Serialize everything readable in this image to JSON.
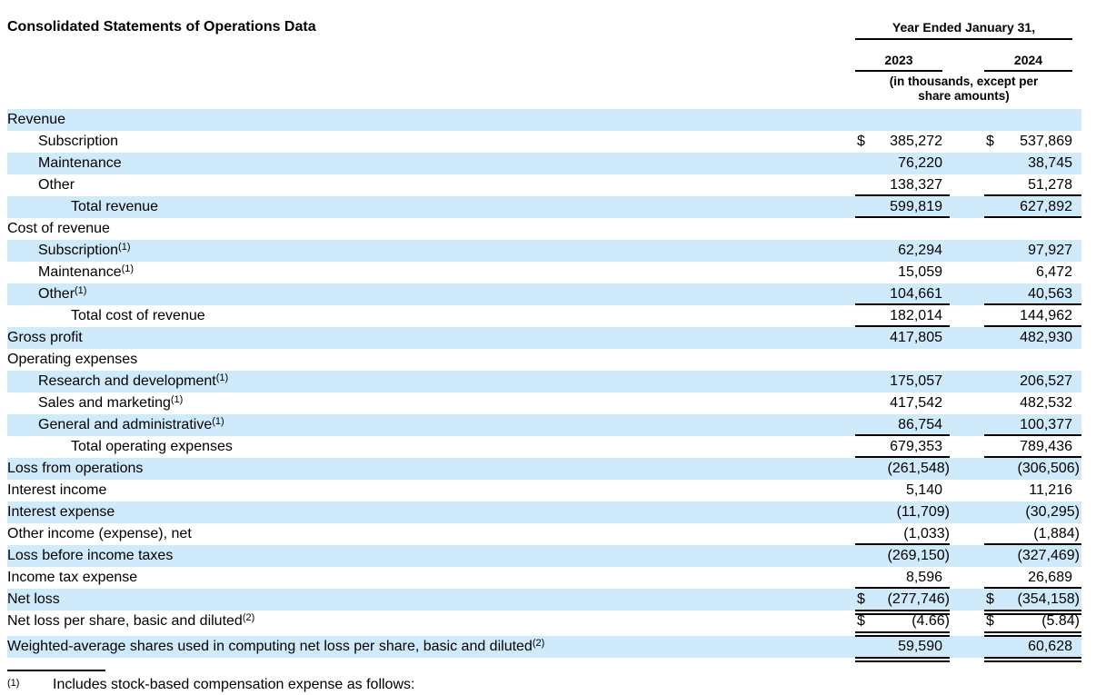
{
  "title": "Consolidated Statements of Operations Data",
  "header": {
    "period_label": "Year Ended January 31,",
    "years": [
      "2023",
      "2024"
    ],
    "units_note_line1": "(in thousands, except per",
    "units_note_line2": "share amounts)"
  },
  "colors": {
    "row_highlight": "#cfeafb",
    "text": "#000000",
    "rule": "#000000"
  },
  "table": {
    "columns": [
      "2023",
      "2024"
    ],
    "rows": [
      {
        "label": "Revenue",
        "indent": 0,
        "highlight": true,
        "d1": "",
        "v1": "",
        "d2": "",
        "v2": "",
        "underline": "none"
      },
      {
        "label": "Subscription",
        "indent": 1,
        "highlight": false,
        "d1": "$",
        "v1": "385,272",
        "d2": "$",
        "v2": "537,869",
        "underline": "none"
      },
      {
        "label": "Maintenance",
        "indent": 1,
        "highlight": true,
        "d1": "",
        "v1": "76,220",
        "d2": "",
        "v2": "38,745",
        "underline": "none"
      },
      {
        "label": "Other",
        "indent": 1,
        "highlight": false,
        "d1": "",
        "v1": "138,327",
        "d2": "",
        "v2": "51,278",
        "underline": "single"
      },
      {
        "label": "Total revenue",
        "indent": 2,
        "highlight": true,
        "d1": "",
        "v1": "599,819",
        "d2": "",
        "v2": "627,892",
        "underline": "single"
      },
      {
        "label": "Cost of revenue",
        "indent": 0,
        "highlight": false,
        "d1": "",
        "v1": "",
        "d2": "",
        "v2": "",
        "underline": "none"
      },
      {
        "label": "Subscription",
        "sup": "(1)",
        "indent": 1,
        "highlight": true,
        "d1": "",
        "v1": "62,294",
        "d2": "",
        "v2": "97,927",
        "underline": "none"
      },
      {
        "label": "Maintenance",
        "sup": "(1)",
        "indent": 1,
        "highlight": false,
        "d1": "",
        "v1": "15,059",
        "d2": "",
        "v2": "6,472",
        "underline": "none"
      },
      {
        "label": "Other",
        "sup": "(1)",
        "indent": 1,
        "highlight": true,
        "d1": "",
        "v1": "104,661",
        "d2": "",
        "v2": "40,563",
        "underline": "single"
      },
      {
        "label": "Total cost of revenue",
        "indent": 2,
        "highlight": false,
        "d1": "",
        "v1": "182,014",
        "d2": "",
        "v2": "144,962",
        "underline": "single"
      },
      {
        "label": "Gross profit",
        "indent": 0,
        "highlight": true,
        "d1": "",
        "v1": "417,805",
        "d2": "",
        "v2": "482,930",
        "underline": "none"
      },
      {
        "label": "Operating expenses",
        "indent": 0,
        "highlight": false,
        "d1": "",
        "v1": "",
        "d2": "",
        "v2": "",
        "underline": "none"
      },
      {
        "label": "Research and development",
        "sup": "(1)",
        "indent": 1,
        "highlight": true,
        "d1": "",
        "v1": "175,057",
        "d2": "",
        "v2": "206,527",
        "underline": "none"
      },
      {
        "label": "Sales and marketing",
        "sup": "(1)",
        "indent": 1,
        "highlight": false,
        "d1": "",
        "v1": "417,542",
        "d2": "",
        "v2": "482,532",
        "underline": "none"
      },
      {
        "label": "General and administrative",
        "sup": "(1)",
        "indent": 1,
        "highlight": true,
        "d1": "",
        "v1": "86,754",
        "d2": "",
        "v2": "100,377",
        "underline": "single"
      },
      {
        "label": "Total operating expenses",
        "indent": 2,
        "highlight": false,
        "d1": "",
        "v1": "679,353",
        "d2": "",
        "v2": "789,436",
        "underline": "single"
      },
      {
        "label": "Loss from operations",
        "indent": 0,
        "highlight": true,
        "d1": "",
        "v1": "(261,548)",
        "d2": "",
        "v2": "(306,506)",
        "underline": "none"
      },
      {
        "label": "Interest income",
        "indent": 0,
        "highlight": false,
        "d1": "",
        "v1": "5,140",
        "d2": "",
        "v2": "11,216",
        "underline": "none"
      },
      {
        "label": "Interest expense",
        "indent": 0,
        "highlight": true,
        "d1": "",
        "v1": "(11,709)",
        "d2": "",
        "v2": "(30,295)",
        "underline": "none"
      },
      {
        "label": "Other income (expense), net",
        "indent": 0,
        "highlight": false,
        "d1": "",
        "v1": "(1,033)",
        "d2": "",
        "v2": "(1,884)",
        "underline": "single"
      },
      {
        "label": "Loss before income taxes",
        "indent": 0,
        "highlight": true,
        "d1": "",
        "v1": "(269,150)",
        "d2": "",
        "v2": "(327,469)",
        "underline": "none"
      },
      {
        "label": "Income tax expense",
        "indent": 0,
        "highlight": false,
        "d1": "",
        "v1": "8,596",
        "d2": "",
        "v2": "26,689",
        "underline": "single"
      },
      {
        "label": "Net loss",
        "indent": 0,
        "highlight": true,
        "d1": "$",
        "v1": "(277,746)",
        "d2": "$",
        "v2": "(354,158)",
        "underline": "double"
      },
      {
        "label": "Net loss per share, basic and diluted",
        "sup": "(2)",
        "indent": 0,
        "highlight": false,
        "d1": "$",
        "v1": "(4.66)",
        "d2": "$",
        "v2": "(5.84)",
        "underline": "double"
      },
      {
        "label": "Weighted-average shares used in computing net loss per share, basic and diluted",
        "sup": "(2)",
        "indent": 0,
        "highlight": true,
        "d1": "",
        "v1": "59,590",
        "d2": "",
        "v2": "60,628",
        "underline": "double",
        "spacer_top": true
      }
    ]
  },
  "footnote": {
    "marker": "(1)",
    "text": "Includes stock-based compensation expense as follows:"
  }
}
